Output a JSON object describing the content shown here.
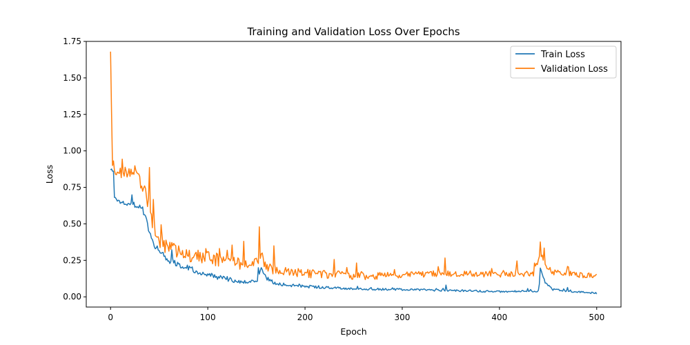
{
  "chart_data": {
    "type": "line",
    "title": "Training and Validation Loss Over Epochs",
    "xlabel": "Epoch",
    "ylabel": "Loss",
    "xlim": [
      -25,
      525
    ],
    "ylim": [
      -0.07,
      1.75
    ],
    "xticks": [
      0,
      100,
      200,
      300,
      400,
      500
    ],
    "yticks": [
      0.0,
      0.25,
      0.5,
      0.75,
      1.0,
      1.25,
      1.5,
      1.75
    ],
    "xtick_labels": [
      "0",
      "100",
      "200",
      "300",
      "400",
      "500"
    ],
    "ytick_labels": [
      "0.00",
      "0.25",
      "0.50",
      "0.75",
      "1.00",
      "1.25",
      "1.50",
      "1.75"
    ],
    "legend_position": "top-right",
    "grid": false,
    "epochs": 500,
    "series": [
      {
        "name": "Train Loss",
        "color": "#1f77b4",
        "control_points": [
          [
            0,
            0.87
          ],
          [
            3,
            0.86
          ],
          [
            4,
            0.68
          ],
          [
            10,
            0.65
          ],
          [
            20,
            0.64
          ],
          [
            30,
            0.62
          ],
          [
            36,
            0.55
          ],
          [
            40,
            0.43
          ],
          [
            45,
            0.35
          ],
          [
            52,
            0.3
          ],
          [
            60,
            0.25
          ],
          [
            80,
            0.2
          ],
          [
            100,
            0.15
          ],
          [
            120,
            0.12
          ],
          [
            140,
            0.1
          ],
          [
            152,
            0.12
          ],
          [
            155,
            0.2
          ],
          [
            160,
            0.13
          ],
          [
            170,
            0.09
          ],
          [
            200,
            0.07
          ],
          [
            250,
            0.055
          ],
          [
            300,
            0.05
          ],
          [
            340,
            0.045
          ],
          [
            400,
            0.035
          ],
          [
            440,
            0.04
          ],
          [
            443,
            0.18
          ],
          [
            447,
            0.1
          ],
          [
            455,
            0.05
          ],
          [
            470,
            0.04
          ],
          [
            500,
            0.025
          ]
        ],
        "noise": [
          [
            0,
            0.015
          ],
          [
            40,
            0.02
          ],
          [
            60,
            0.025
          ],
          [
            100,
            0.018
          ],
          [
            160,
            0.012
          ],
          [
            220,
            0.008
          ],
          [
            500,
            0.006
          ]
        ],
        "spikes": [
          [
            22,
            0.06
          ],
          [
            33,
            0.04
          ],
          [
            63,
            0.06
          ],
          [
            120,
            0.03
          ],
          [
            152,
            0.08
          ],
          [
            345,
            0.03
          ],
          [
            442,
            0.06
          ],
          [
            470,
            0.03
          ]
        ]
      },
      {
        "name": "Validation Loss",
        "color": "#ff7f0e",
        "control_points": [
          [
            0,
            1.68
          ],
          [
            1,
            1.3
          ],
          [
            2,
            0.93
          ],
          [
            5,
            0.86
          ],
          [
            15,
            0.86
          ],
          [
            25,
            0.83
          ],
          [
            33,
            0.78
          ],
          [
            38,
            0.65
          ],
          [
            44,
            0.48
          ],
          [
            50,
            0.38
          ],
          [
            60,
            0.33
          ],
          [
            80,
            0.29
          ],
          [
            100,
            0.27
          ],
          [
            120,
            0.24
          ],
          [
            140,
            0.22
          ],
          [
            150,
            0.24
          ],
          [
            155,
            0.3
          ],
          [
            160,
            0.2
          ],
          [
            180,
            0.17
          ],
          [
            200,
            0.16
          ],
          [
            240,
            0.15
          ],
          [
            260,
            0.14
          ],
          [
            300,
            0.15
          ],
          [
            340,
            0.16
          ],
          [
            400,
            0.155
          ],
          [
            435,
            0.16
          ],
          [
            442,
            0.28
          ],
          [
            448,
            0.2
          ],
          [
            455,
            0.17
          ],
          [
            470,
            0.16
          ],
          [
            500,
            0.14
          ]
        ],
        "noise": [
          [
            0,
            0.04
          ],
          [
            40,
            0.06
          ],
          [
            60,
            0.05
          ],
          [
            100,
            0.05
          ],
          [
            160,
            0.035
          ],
          [
            220,
            0.028
          ],
          [
            300,
            0.022
          ],
          [
            500,
            0.02
          ]
        ],
        "spikes": [
          [
            3,
            0.05
          ],
          [
            12,
            0.1
          ],
          [
            25,
            0.08
          ],
          [
            40,
            0.28
          ],
          [
            44,
            0.22
          ],
          [
            52,
            0.17
          ],
          [
            65,
            0.06
          ],
          [
            98,
            0.1
          ],
          [
            112,
            0.12
          ],
          [
            125,
            0.11
          ],
          [
            137,
            0.12
          ],
          [
            153,
            0.16
          ],
          [
            168,
            0.08
          ],
          [
            230,
            0.1
          ],
          [
            253,
            0.1
          ],
          [
            292,
            0.06
          ],
          [
            344,
            0.1
          ],
          [
            418,
            0.07
          ],
          [
            442,
            0.08
          ],
          [
            446,
            0.1
          ],
          [
            470,
            0.05
          ]
        ]
      }
    ]
  }
}
